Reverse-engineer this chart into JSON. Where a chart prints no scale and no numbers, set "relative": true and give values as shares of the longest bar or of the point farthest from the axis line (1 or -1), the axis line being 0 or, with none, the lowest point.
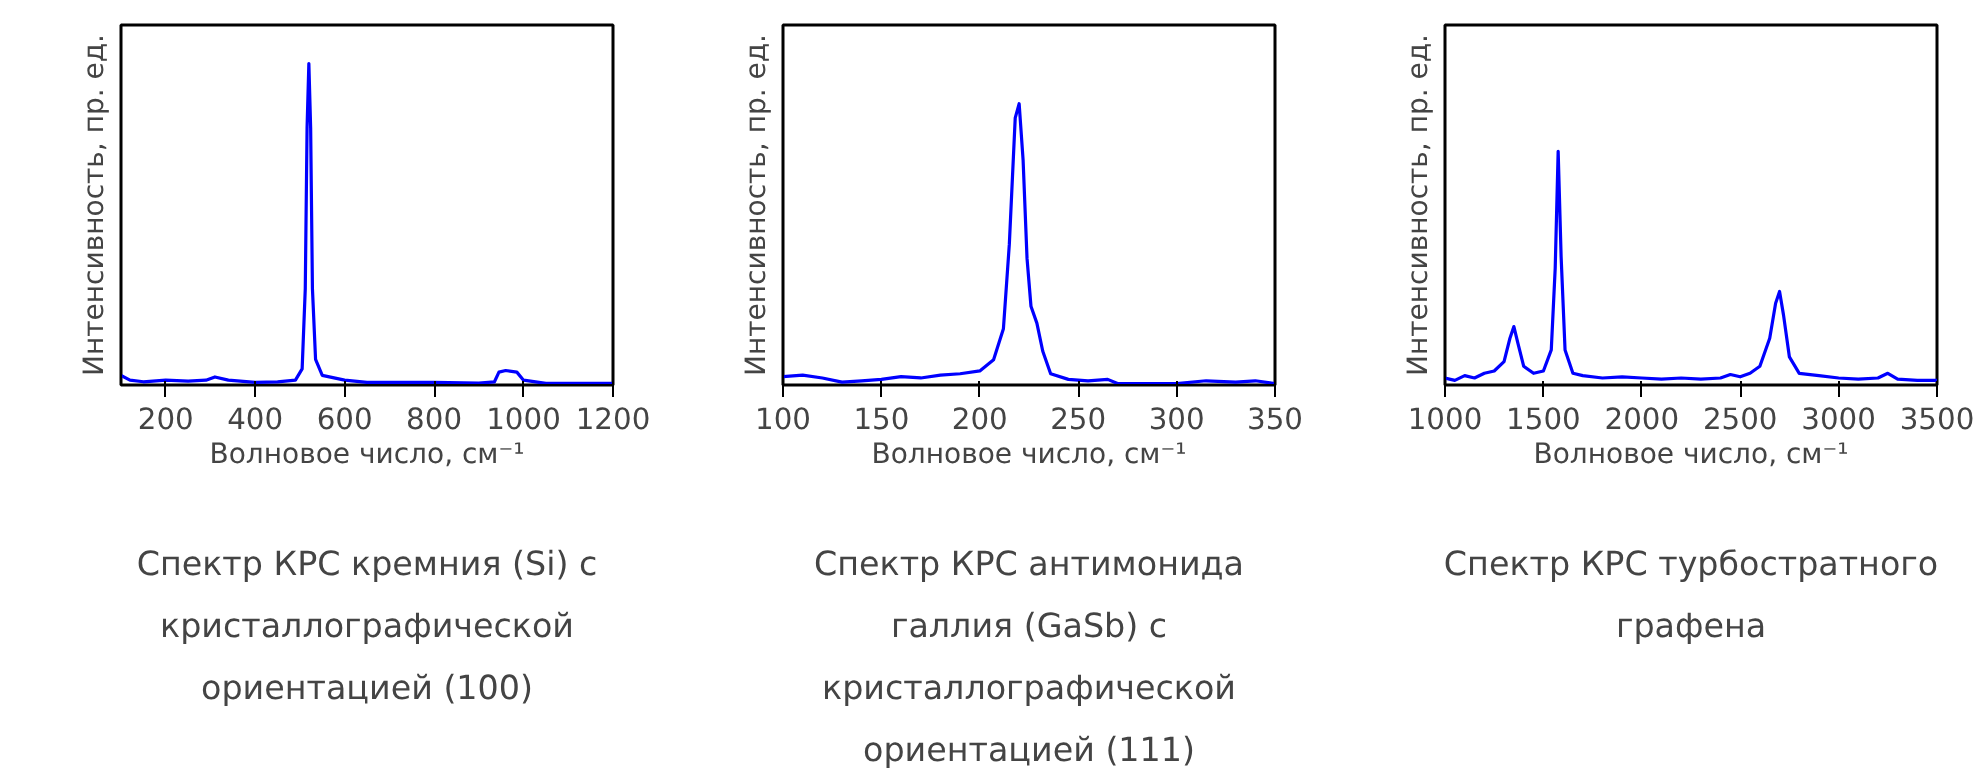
{
  "chart_data": [
    {
      "type": "line",
      "relative": true,
      "title": "Спектр КРС кремния (Si) с кристаллографической ориентацией (100)",
      "xlabel": "Волновое число, см⁻¹",
      "ylabel": "Интенсивность, пр. ед.",
      "xlim": [
        100,
        1200
      ],
      "xticks": [
        200,
        400,
        600,
        800,
        1000,
        1200
      ],
      "tick_labels": "x",
      "grid": false,
      "series": [
        {
          "color": "#0000ff",
          "x": [
            100,
            120,
            150,
            200,
            250,
            290,
            310,
            340,
            400,
            450,
            490,
            505,
            512,
            516,
            520,
            524,
            528,
            535,
            550,
            600,
            650,
            800,
            900,
            935,
            945,
            960,
            985,
            1000,
            1050,
            1200
          ],
          "values": [
            0.03,
            0.015,
            0.01,
            0.015,
            0.012,
            0.015,
            0.025,
            0.015,
            0.008,
            0.01,
            0.015,
            0.05,
            0.3,
            0.8,
            1,
            0.8,
            0.3,
            0.08,
            0.03,
            0.015,
            0.008,
            0.008,
            0.006,
            0.01,
            0.04,
            0.045,
            0.04,
            0.015,
            0.005,
            0.005
          ]
        }
      ]
    },
    {
      "type": "line",
      "relative": true,
      "title": "Спектр КРС антимонида галлия (GaSb) с кристаллографической ориентацией (111)",
      "xlabel": "Волновое число, см⁻¹",
      "ylabel": "Интенсивность, пр. ед.",
      "xlim": [
        100,
        350
      ],
      "xticks": [
        100,
        150,
        200,
        250,
        300,
        350
      ],
      "tick_labels": "x",
      "grid": false,
      "series": [
        {
          "color": "#0000ff",
          "x": [
            100,
            110,
            120,
            130,
            140,
            150,
            160,
            170,
            180,
            190,
            200,
            207,
            212,
            215,
            218,
            220,
            222,
            224,
            226,
            229,
            232,
            236,
            245,
            255,
            265,
            270,
            300,
            315,
            330,
            340,
            350
          ],
          "values": [
            0.03,
            0.035,
            0.025,
            0.01,
            0.015,
            0.02,
            0.03,
            0.025,
            0.035,
            0.04,
            0.05,
            0.09,
            0.2,
            0.5,
            0.95,
            1,
            0.8,
            0.45,
            0.28,
            0.22,
            0.12,
            0.04,
            0.02,
            0.015,
            0.02,
            0.005,
            0.005,
            0.015,
            0.01,
            0.015,
            0.005
          ]
        }
      ]
    },
    {
      "type": "line",
      "relative": true,
      "title": "Спектр КРС турбостратного графена",
      "xlabel": "Волновое число, см⁻¹",
      "ylabel": "Интенсивность, пр. ед.",
      "xlim": [
        1000,
        3500
      ],
      "xticks": [
        1000,
        1500,
        2000,
        2500,
        3000,
        3500
      ],
      "tick_labels": "x",
      "grid": false,
      "series": [
        {
          "color": "#0000ff",
          "x": [
            1000,
            1050,
            1100,
            1150,
            1200,
            1250,
            1300,
            1330,
            1350,
            1370,
            1400,
            1450,
            1500,
            1540,
            1560,
            1575,
            1590,
            1610,
            1650,
            1700,
            1800,
            1900,
            2000,
            2100,
            2200,
            2300,
            2400,
            2450,
            2500,
            2550,
            2600,
            2650,
            2680,
            2700,
            2720,
            2750,
            2800,
            2900,
            3000,
            3100,
            3200,
            3250,
            3300,
            3400,
            3500
          ],
          "values": [
            0.03,
            0.02,
            0.04,
            0.03,
            0.05,
            0.06,
            0.1,
            0.2,
            0.25,
            0.18,
            0.08,
            0.05,
            0.06,
            0.15,
            0.5,
            1,
            0.55,
            0.15,
            0.05,
            0.04,
            0.03,
            0.035,
            0.03,
            0.025,
            0.03,
            0.025,
            0.03,
            0.045,
            0.035,
            0.05,
            0.08,
            0.2,
            0.35,
            0.4,
            0.3,
            0.12,
            0.05,
            0.04,
            0.03,
            0.025,
            0.03,
            0.05,
            0.025,
            0.02,
            0.02
          ]
        }
      ]
    }
  ]
}
